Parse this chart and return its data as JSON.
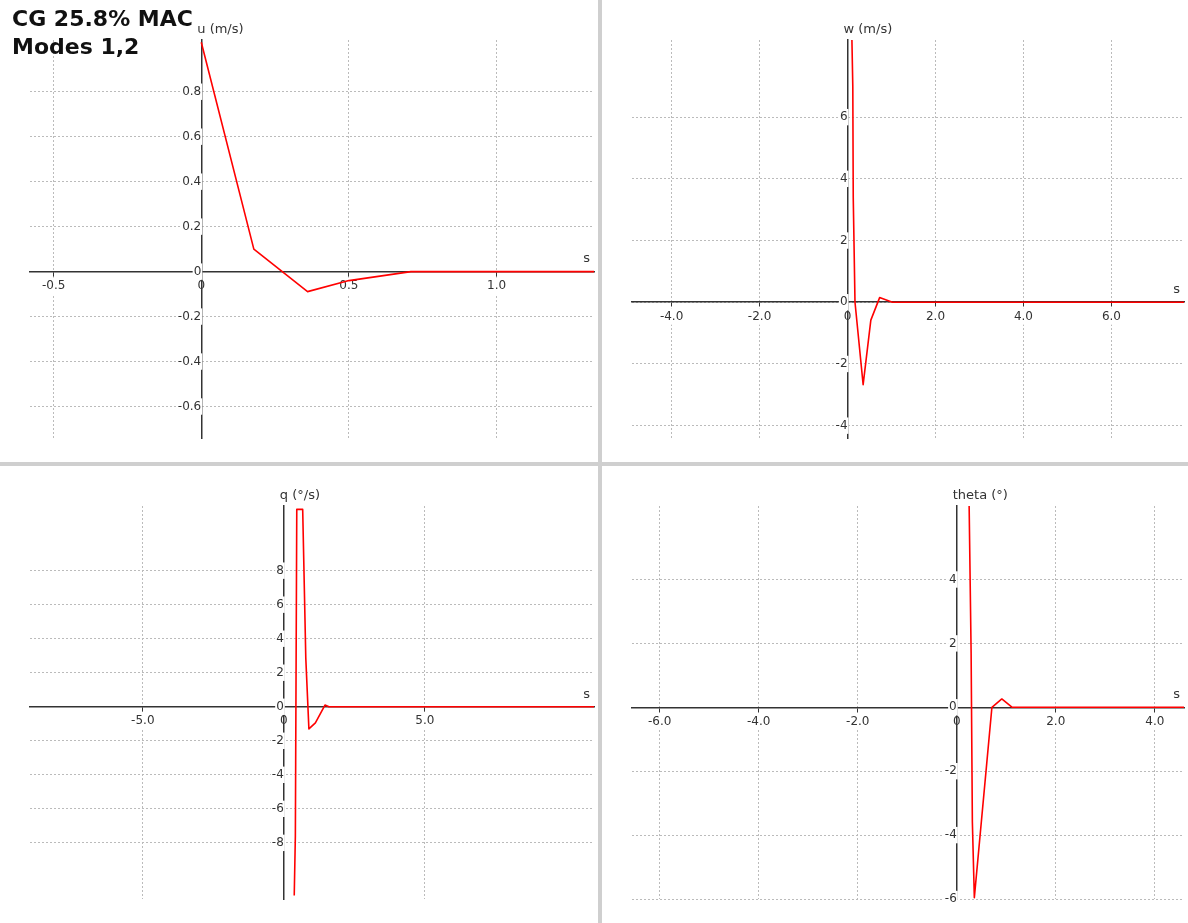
{
  "chart_data": [
    {
      "type": "line",
      "title": "CG 25.8% MAC",
      "subtitle": "Modes 1,2",
      "xlabel": "s",
      "ylabel": "u (m/s)",
      "grid": true,
      "legend": false,
      "marker": "none",
      "line_style": "solid",
      "xlim": [
        -0.58,
        1.33
      ],
      "ylim": [
        -0.74,
        1.03
      ],
      "xticks": [
        -0.5,
        0,
        0.5,
        {
          "value": 1,
          "label": "1.0"
        }
      ],
      "yticks": [
        -0.6,
        -0.4,
        -0.2,
        0,
        0.2,
        0.4,
        0.6,
        0.8
      ],
      "series": [
        {
          "color": "#ff0000",
          "x": [
            0,
            0.178,
            0.36,
            0.5,
            0.71,
            1.33
          ],
          "values": [
            1.02,
            0.1,
            -0.089,
            -0.04,
            0,
            0
          ]
        }
      ]
    },
    {
      "type": "line",
      "xlabel": "s",
      "ylabel": "w (m/s)",
      "grid": true,
      "legend": false,
      "marker": "none",
      "line_style": "solid",
      "xlim": [
        -4.9,
        7.65
      ],
      "ylim": [
        -4.4,
        8.5
      ],
      "xticks": [
        {
          "value": -4,
          "label": "-4.0"
        },
        {
          "value": -2,
          "label": "-2.0"
        },
        0,
        {
          "value": 2,
          "label": "2.0"
        },
        {
          "value": 4,
          "label": "4.0"
        },
        {
          "value": 6,
          "label": "6.0"
        }
      ],
      "yticks": [
        -4,
        -2,
        0,
        2,
        4,
        6
      ],
      "series": [
        {
          "color": "#ff0000",
          "x": [
            0.1,
            0.12,
            0.13,
            0.17,
            0.355,
            0.53,
            0.73,
            1.02,
            7.65
          ],
          "values": [
            8.5,
            7.0,
            3.4,
            0,
            -2.67,
            -0.58,
            0.15,
            0,
            0
          ]
        }
      ]
    },
    {
      "type": "line",
      "xlabel": "s",
      "ylabel": "q (°/s)",
      "grid": true,
      "legend": false,
      "marker": "none",
      "line_style": "solid",
      "xlim": [
        -9.0,
        11.0
      ],
      "ylim": [
        -11.3,
        11.8
      ],
      "xticks": [
        {
          "value": -5,
          "label": "-5.0"
        },
        0,
        {
          "value": 5,
          "label": "5.0"
        }
      ],
      "yticks": [
        -8,
        -6,
        -4,
        -2,
        0,
        2,
        4,
        6,
        8
      ],
      "series": [
        {
          "color": "#ff0000",
          "x": [
            0.37,
            0.41,
            0.46,
            0.56,
            0.67,
            0.78,
            0.89,
            1.12,
            1.46,
            1.6,
            11.0
          ],
          "values": [
            -11.1,
            -7.6,
            11.6,
            11.6,
            11.6,
            2.86,
            -1.3,
            -0.95,
            0.1,
            0,
            0
          ]
        }
      ]
    },
    {
      "type": "line",
      "xlabel": "s",
      "ylabel": "theta (°)",
      "grid": true,
      "legend": false,
      "marker": "none",
      "line_style": "solid",
      "xlim": [
        -6.56,
        4.59
      ],
      "ylim": [
        -6.0,
        6.3
      ],
      "xticks": [
        {
          "value": -6,
          "label": "-6.0"
        },
        {
          "value": -4,
          "label": "-4.0"
        },
        {
          "value": -2,
          "label": "-2.0"
        },
        0,
        {
          "value": 2,
          "label": "2.0"
        },
        {
          "value": 4,
          "label": "4.0"
        }
      ],
      "yticks": [
        -6,
        -4,
        -2,
        0,
        2,
        4
      ],
      "series": [
        {
          "color": "#ff0000",
          "x": [
            0.25,
            0.29,
            0.315,
            0.355,
            0.71,
            0.91,
            1.12,
            4.59
          ],
          "values": [
            6.3,
            1.69,
            -3.58,
            -5.96,
            0,
            0.26,
            0,
            0
          ]
        }
      ]
    }
  ]
}
